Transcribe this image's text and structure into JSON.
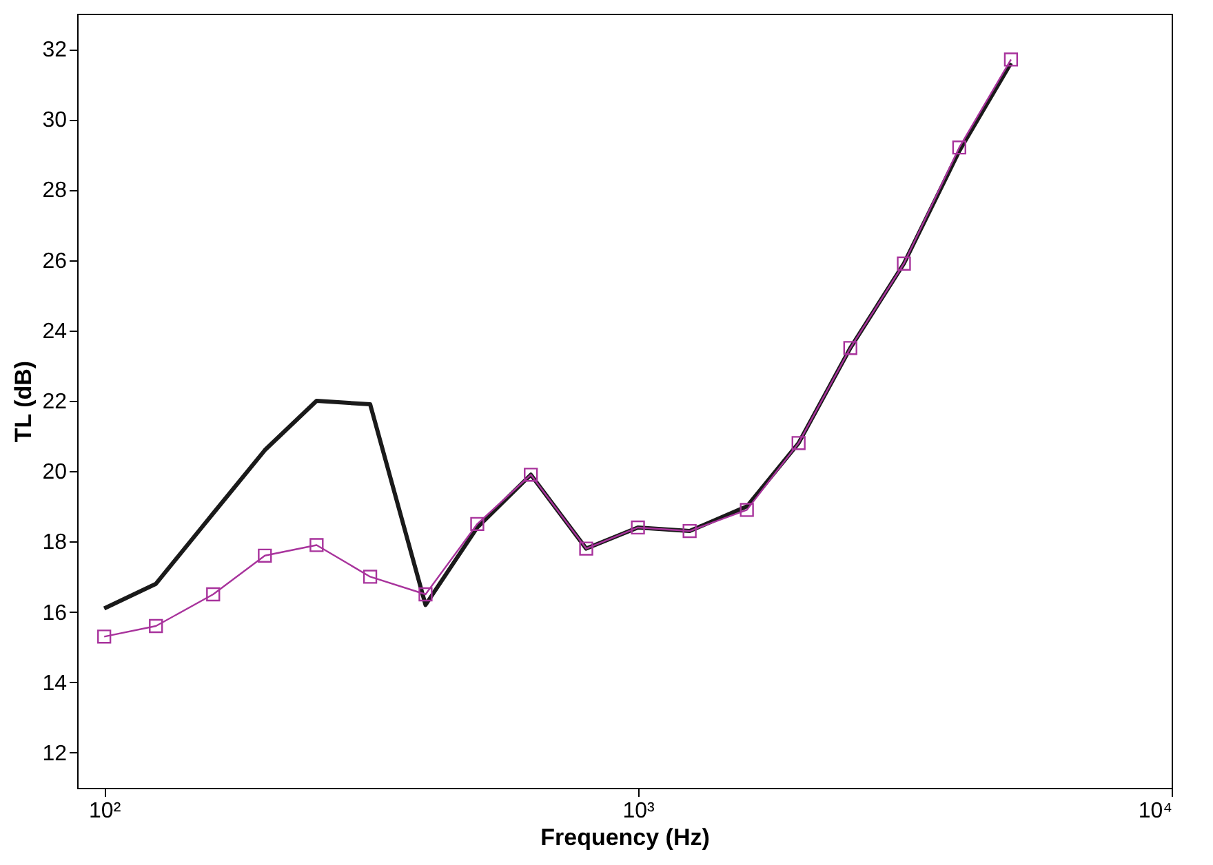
{
  "chart_data": {
    "type": "line",
    "xlabel": "Frequency (Hz)",
    "ylabel": "TL (dB)",
    "log": "x",
    "x": [
      100,
      125,
      160,
      200,
      250,
      315,
      400,
      500,
      630,
      800,
      1000,
      1250,
      1600,
      2000,
      2500,
      3150,
      4000,
      5000
    ],
    "xlim": [
      89,
      10000
    ],
    "xticks": [
      {
        "value": 100,
        "label": "10²"
      },
      {
        "value": 1000,
        "label": "10³"
      },
      {
        "value": 10000,
        "label": "10⁴"
      }
    ],
    "ylim": [
      11,
      33
    ],
    "yticks": [
      12,
      14,
      16,
      18,
      20,
      22,
      24,
      26,
      28,
      30,
      32
    ],
    "series": [
      {
        "color": "#1a1a1a",
        "marker": "none",
        "values": [
          16.1,
          16.8,
          18.8,
          20.6,
          22.0,
          21.9,
          16.2,
          18.4,
          19.9,
          17.8,
          18.4,
          18.3,
          19.0,
          20.8,
          23.5,
          25.9,
          29.1,
          31.6
        ]
      },
      {
        "color": "#a8339c",
        "marker": "square",
        "values": [
          15.3,
          15.6,
          16.5,
          17.6,
          17.9,
          17.0,
          16.5,
          18.5,
          19.9,
          17.8,
          18.4,
          18.3,
          18.9,
          20.8,
          23.5,
          25.9,
          29.2,
          31.7
        ]
      }
    ]
  }
}
